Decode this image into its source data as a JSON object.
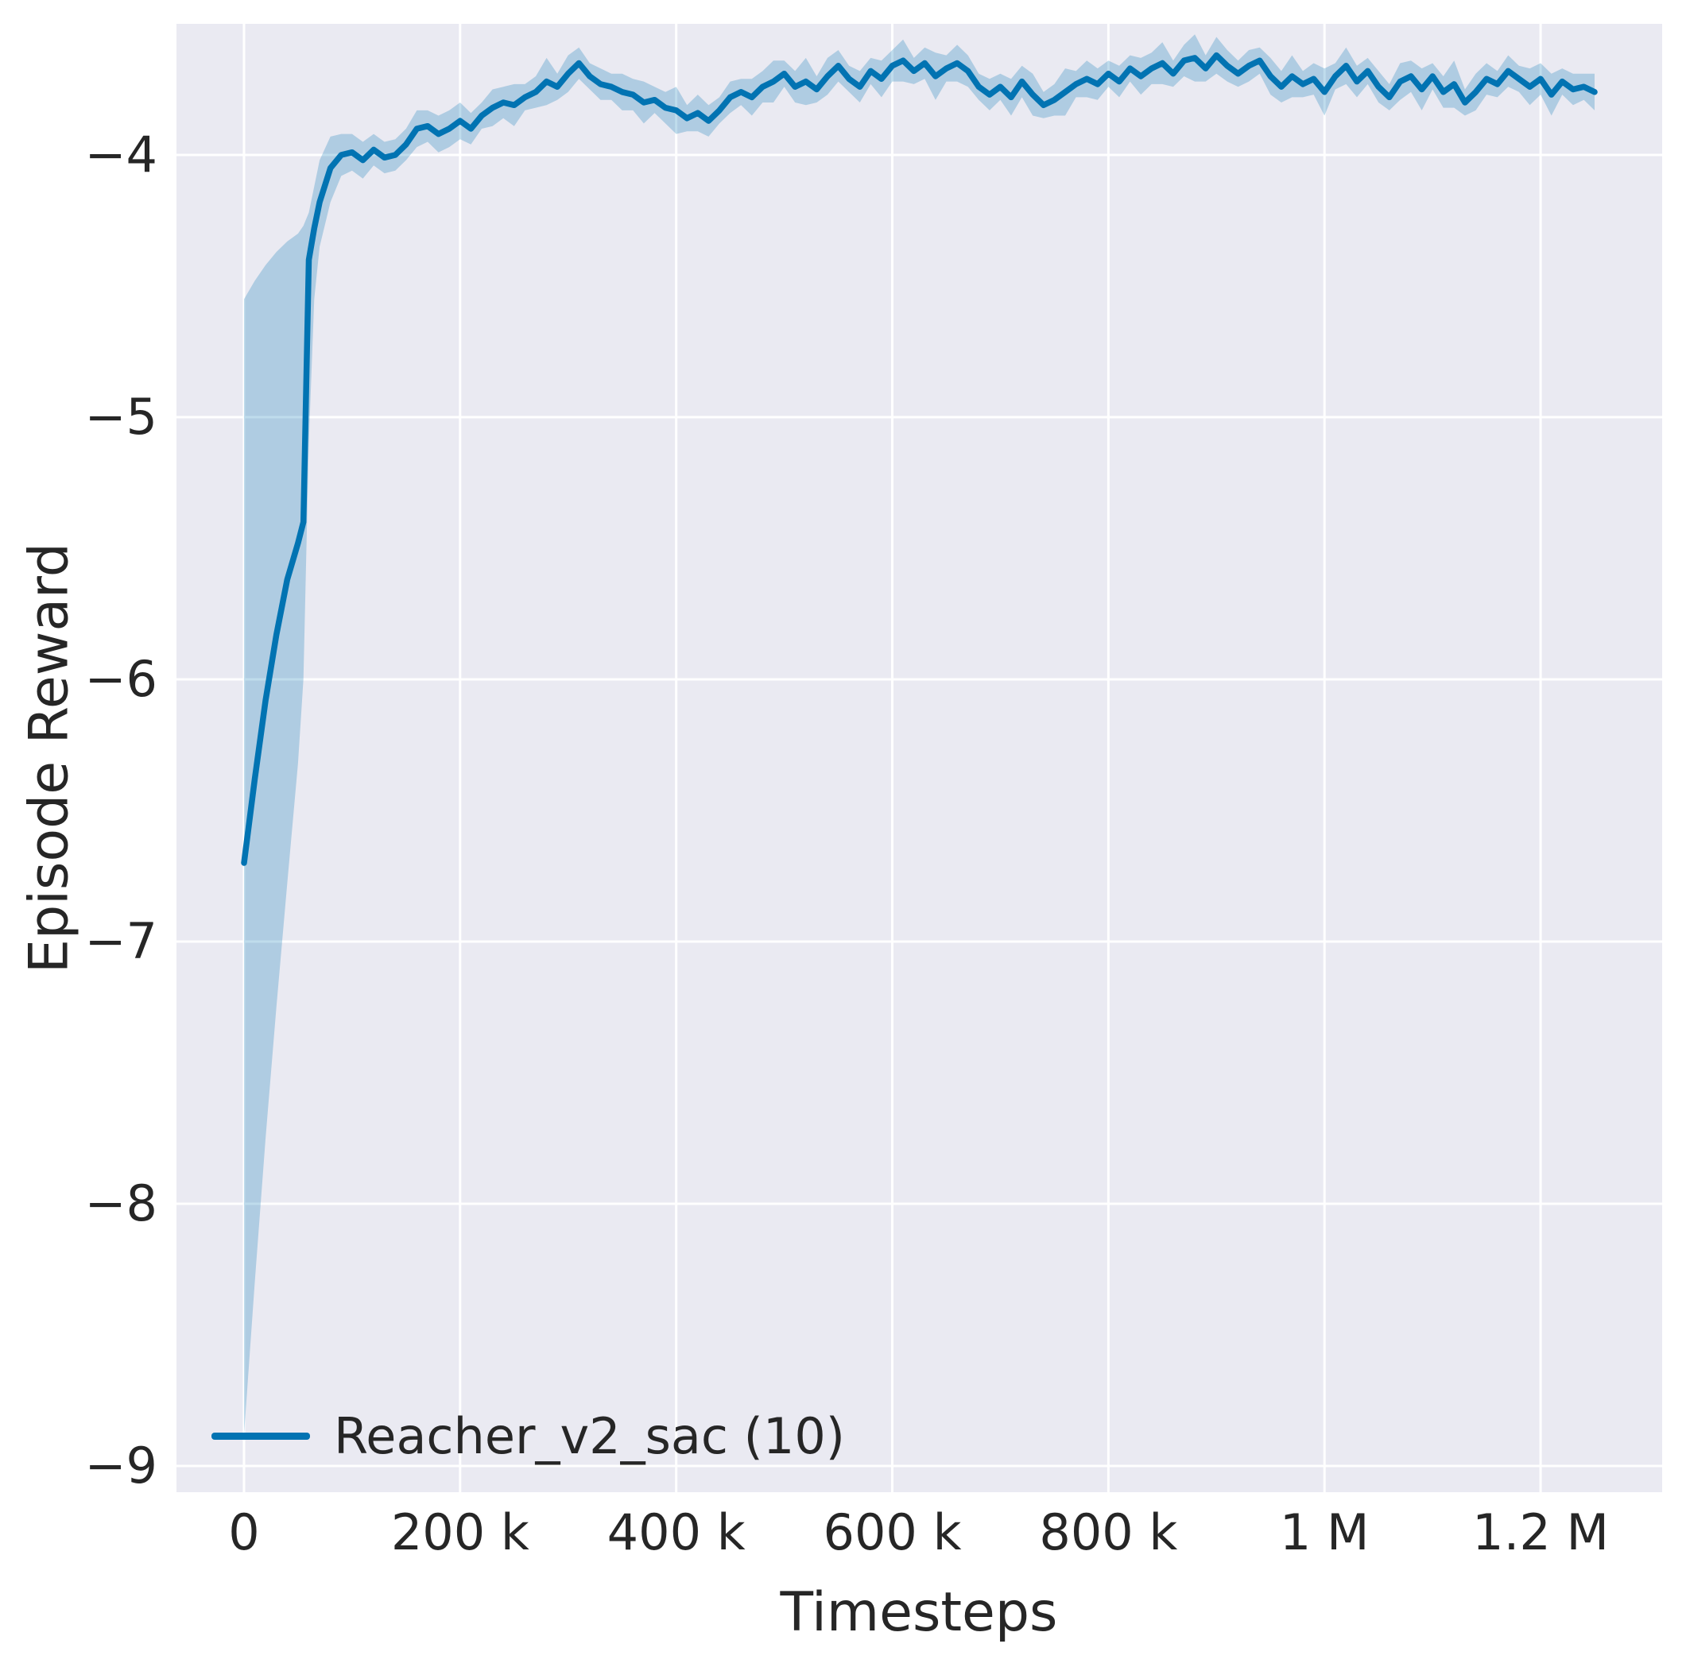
{
  "figure": {
    "bg_color": "#ffffff",
    "plot_bg_color": "#eaeaf2",
    "grid_color": "#ffffff",
    "text_color": "#262626"
  },
  "chart_data": {
    "type": "line",
    "title": "",
    "xlabel": "Timesteps",
    "ylabel": "Episode Reward",
    "grid": true,
    "x_multiplier": 1000,
    "xlim_k": [
      -62.5,
      1312.5
    ],
    "ylim": [
      -9.1,
      -3.5
    ],
    "xticks": [
      {
        "v": 0,
        "label": "0"
      },
      {
        "v": 200,
        "label": "200 k"
      },
      {
        "v": 400,
        "label": "400 k"
      },
      {
        "v": 600,
        "label": "600 k"
      },
      {
        "v": 800,
        "label": "800 k"
      },
      {
        "v": 1000,
        "label": "1 M"
      },
      {
        "v": 1200,
        "label": "1.2 M"
      }
    ],
    "yticks": [
      {
        "v": -4,
        "label": "−4"
      },
      {
        "v": -5,
        "label": "−5"
      },
      {
        "v": -6,
        "label": "−6"
      },
      {
        "v": -7,
        "label": "−7"
      },
      {
        "v": -8,
        "label": "−8"
      },
      {
        "v": -9,
        "label": "−9"
      }
    ],
    "legend": {
      "position": "lower-left",
      "entries": [
        {
          "label": "Reacher_v2_sac (10)",
          "color": "#0173b2"
        }
      ]
    },
    "series": [
      {
        "name": "Reacher_v2_sac (10)",
        "color": "#0173b2",
        "line_width": 7.5,
        "band_opacity": 0.25,
        "x_k": [
          0,
          10,
          20,
          30,
          40,
          50,
          55,
          60,
          65,
          70,
          80,
          90,
          100,
          110,
          120,
          130,
          140,
          150,
          160,
          170,
          180,
          190,
          200,
          210,
          220,
          230,
          240,
          250,
          260,
          270,
          280,
          290,
          300,
          310,
          320,
          330,
          340,
          350,
          360,
          370,
          380,
          390,
          400,
          410,
          420,
          430,
          440,
          450,
          460,
          470,
          480,
          490,
          500,
          510,
          520,
          530,
          540,
          550,
          560,
          570,
          580,
          590,
          600,
          610,
          620,
          630,
          640,
          650,
          660,
          670,
          680,
          690,
          700,
          710,
          720,
          730,
          740,
          750,
          760,
          770,
          780,
          790,
          800,
          810,
          820,
          830,
          840,
          850,
          860,
          870,
          880,
          890,
          900,
          910,
          920,
          930,
          940,
          950,
          960,
          970,
          980,
          990,
          1000,
          1010,
          1020,
          1030,
          1040,
          1050,
          1060,
          1070,
          1080,
          1090,
          1100,
          1110,
          1120,
          1130,
          1140,
          1150,
          1160,
          1170,
          1180,
          1190,
          1200,
          1210,
          1220,
          1230,
          1240,
          1250
        ],
        "mean": [
          -6.7,
          -6.38,
          -6.08,
          -5.83,
          -5.62,
          -5.48,
          -5.4,
          -4.4,
          -4.28,
          -4.18,
          -4.05,
          -4.0,
          -3.99,
          -4.02,
          -3.98,
          -4.01,
          -4.0,
          -3.96,
          -3.9,
          -3.89,
          -3.92,
          -3.9,
          -3.87,
          -3.9,
          -3.85,
          -3.82,
          -3.8,
          -3.81,
          -3.78,
          -3.76,
          -3.72,
          -3.74,
          -3.69,
          -3.65,
          -3.7,
          -3.73,
          -3.74,
          -3.76,
          -3.77,
          -3.8,
          -3.79,
          -3.82,
          -3.83,
          -3.86,
          -3.84,
          -3.87,
          -3.83,
          -3.78,
          -3.76,
          -3.78,
          -3.74,
          -3.72,
          -3.69,
          -3.74,
          -3.72,
          -3.75,
          -3.7,
          -3.66,
          -3.71,
          -3.74,
          -3.68,
          -3.71,
          -3.66,
          -3.64,
          -3.68,
          -3.65,
          -3.7,
          -3.67,
          -3.65,
          -3.68,
          -3.74,
          -3.77,
          -3.74,
          -3.78,
          -3.72,
          -3.77,
          -3.81,
          -3.79,
          -3.76,
          -3.73,
          -3.71,
          -3.73,
          -3.69,
          -3.72,
          -3.67,
          -3.7,
          -3.67,
          -3.65,
          -3.69,
          -3.64,
          -3.63,
          -3.67,
          -3.62,
          -3.66,
          -3.69,
          -3.66,
          -3.64,
          -3.7,
          -3.74,
          -3.7,
          -3.73,
          -3.71,
          -3.76,
          -3.7,
          -3.66,
          -3.72,
          -3.68,
          -3.74,
          -3.78,
          -3.72,
          -3.7,
          -3.75,
          -3.7,
          -3.76,
          -3.73,
          -3.8,
          -3.76,
          -3.71,
          -3.73,
          -3.68,
          -3.71,
          -3.74,
          -3.71,
          -3.77,
          -3.72,
          -3.75,
          -3.74,
          -3.76
        ],
        "lo": [
          -8.88,
          -8.3,
          -7.75,
          -7.25,
          -6.78,
          -6.32,
          -6.0,
          -5.1,
          -4.55,
          -4.35,
          -4.18,
          -4.08,
          -4.06,
          -4.09,
          -4.04,
          -4.07,
          -4.06,
          -4.02,
          -3.97,
          -3.95,
          -3.99,
          -3.97,
          -3.94,
          -3.96,
          -3.9,
          -3.89,
          -3.86,
          -3.89,
          -3.83,
          -3.82,
          -3.81,
          -3.79,
          -3.76,
          -3.71,
          -3.75,
          -3.79,
          -3.79,
          -3.83,
          -3.83,
          -3.88,
          -3.84,
          -3.88,
          -3.92,
          -3.91,
          -3.91,
          -3.93,
          -3.88,
          -3.84,
          -3.81,
          -3.85,
          -3.8,
          -3.8,
          -3.74,
          -3.8,
          -3.81,
          -3.8,
          -3.77,
          -3.72,
          -3.76,
          -3.8,
          -3.73,
          -3.78,
          -3.72,
          -3.72,
          -3.73,
          -3.71,
          -3.79,
          -3.72,
          -3.72,
          -3.74,
          -3.79,
          -3.83,
          -3.79,
          -3.85,
          -3.78,
          -3.85,
          -3.86,
          -3.85,
          -3.85,
          -3.78,
          -3.78,
          -3.79,
          -3.74,
          -3.78,
          -3.72,
          -3.77,
          -3.73,
          -3.73,
          -3.74,
          -3.7,
          -3.72,
          -3.72,
          -3.69,
          -3.72,
          -3.74,
          -3.72,
          -3.69,
          -3.77,
          -3.8,
          -3.78,
          -3.78,
          -3.77,
          -3.85,
          -3.75,
          -3.73,
          -3.78,
          -3.73,
          -3.8,
          -3.83,
          -3.79,
          -3.76,
          -3.83,
          -3.75,
          -3.82,
          -3.82,
          -3.85,
          -3.83,
          -3.77,
          -3.78,
          -3.74,
          -3.76,
          -3.81,
          -3.77,
          -3.85,
          -3.77,
          -3.81,
          -3.79,
          -3.83
        ],
        "hi": [
          -4.55,
          -4.48,
          -4.42,
          -4.37,
          -4.33,
          -4.3,
          -4.27,
          -4.22,
          -4.12,
          -4.02,
          -3.93,
          -3.92,
          -3.92,
          -3.95,
          -3.92,
          -3.95,
          -3.94,
          -3.9,
          -3.83,
          -3.83,
          -3.85,
          -3.83,
          -3.8,
          -3.84,
          -3.8,
          -3.75,
          -3.74,
          -3.73,
          -3.73,
          -3.7,
          -3.63,
          -3.69,
          -3.62,
          -3.59,
          -3.65,
          -3.67,
          -3.69,
          -3.69,
          -3.71,
          -3.72,
          -3.74,
          -3.76,
          -3.74,
          -3.81,
          -3.77,
          -3.81,
          -3.78,
          -3.72,
          -3.71,
          -3.71,
          -3.68,
          -3.64,
          -3.64,
          -3.68,
          -3.63,
          -3.7,
          -3.63,
          -3.6,
          -3.66,
          -3.68,
          -3.63,
          -3.64,
          -3.6,
          -3.56,
          -3.63,
          -3.59,
          -3.61,
          -3.62,
          -3.58,
          -3.62,
          -3.69,
          -3.71,
          -3.69,
          -3.71,
          -3.66,
          -3.69,
          -3.76,
          -3.73,
          -3.67,
          -3.68,
          -3.64,
          -3.67,
          -3.64,
          -3.66,
          -3.62,
          -3.63,
          -3.61,
          -3.57,
          -3.64,
          -3.58,
          -3.54,
          -3.62,
          -3.55,
          -3.6,
          -3.64,
          -3.6,
          -3.59,
          -3.63,
          -3.68,
          -3.62,
          -3.68,
          -3.65,
          -3.67,
          -3.65,
          -3.59,
          -3.66,
          -3.63,
          -3.68,
          -3.73,
          -3.65,
          -3.64,
          -3.67,
          -3.65,
          -3.7,
          -3.64,
          -3.75,
          -3.69,
          -3.65,
          -3.68,
          -3.62,
          -3.66,
          -3.67,
          -3.65,
          -3.69,
          -3.67,
          -3.69,
          -3.69,
          -3.69
        ]
      }
    ]
  }
}
